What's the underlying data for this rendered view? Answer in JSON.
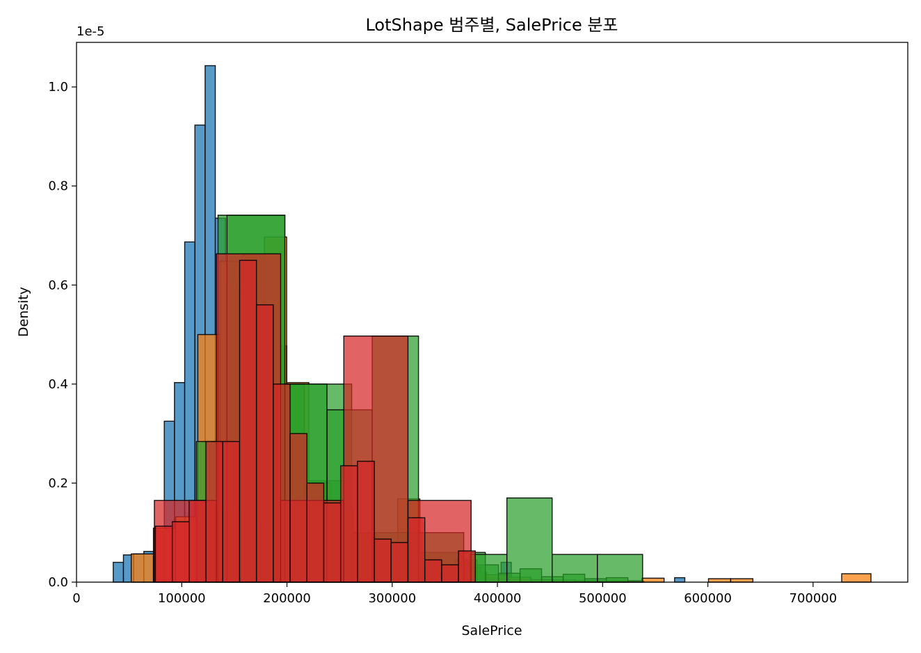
{
  "chart_data": {
    "type": "histogram",
    "title": "LotShape 범주별, SalePrice 분포",
    "xlabel": "SalePrice",
    "ylabel": "Density",
    "y_offset_label": "1e-5",
    "xlim": [
      0,
      790000
    ],
    "ylim": [
      0,
      1.09
    ],
    "x_ticks": [
      0,
      100000,
      200000,
      300000,
      400000,
      500000,
      600000,
      700000
    ],
    "y_ticks": [
      0.0,
      0.2,
      0.4,
      0.6,
      0.8,
      1.0
    ],
    "grid": false,
    "legend": "none",
    "series": [
      {
        "color": "#1f77b4",
        "bins": [
          [
            34900,
            44600,
            0.04
          ],
          [
            44600,
            54300,
            0.055
          ],
          [
            54300,
            64000,
            0.057
          ],
          [
            64000,
            73700,
            0.062
          ],
          [
            73700,
            83400,
            0.103
          ],
          [
            83400,
            93100,
            0.325
          ],
          [
            93100,
            102800,
            0.403
          ],
          [
            102800,
            112500,
            0.687
          ],
          [
            112500,
            122200,
            0.923
          ],
          [
            122200,
            131900,
            1.043
          ],
          [
            131900,
            141600,
            0.735
          ],
          [
            141600,
            151300,
            0.605
          ],
          [
            151300,
            161000,
            0.585
          ],
          [
            161000,
            170700,
            0.538
          ],
          [
            170700,
            180400,
            0.598
          ],
          [
            180400,
            190100,
            0.555
          ],
          [
            190100,
            199800,
            0.477
          ],
          [
            199800,
            209500,
            0.254
          ],
          [
            209500,
            219200,
            0.16
          ],
          [
            219200,
            228900,
            0.145
          ],
          [
            228900,
            238600,
            0.126
          ],
          [
            238600,
            248300,
            0.115
          ],
          [
            248300,
            258000,
            0.09
          ],
          [
            258000,
            267700,
            0.075
          ],
          [
            267700,
            277400,
            0.065
          ],
          [
            277400,
            287100,
            0.055
          ],
          [
            287100,
            296800,
            0.048
          ],
          [
            296800,
            306500,
            0.036
          ],
          [
            306500,
            316200,
            0.028
          ],
          [
            316200,
            325900,
            0.025
          ],
          [
            325900,
            335600,
            0.022
          ],
          [
            335600,
            345300,
            0.048
          ],
          [
            345300,
            355000,
            0.018
          ],
          [
            355000,
            364700,
            0.015
          ],
          [
            364700,
            374400,
            0.012
          ],
          [
            374400,
            384100,
            0.03
          ],
          [
            384100,
            393800,
            0.01
          ],
          [
            393800,
            403500,
            0.008
          ],
          [
            403500,
            413200,
            0.04
          ],
          [
            413200,
            422900,
            0.006
          ],
          [
            422900,
            432600,
            0.005
          ],
          [
            432600,
            442300,
            0.004
          ],
          [
            442300,
            452000,
            0.004
          ],
          [
            452000,
            461700,
            0.003
          ],
          [
            461700,
            471400,
            0.003
          ],
          [
            471400,
            481100,
            0.003
          ],
          [
            481100,
            490800,
            0.003
          ],
          [
            490800,
            500500,
            0.002
          ],
          [
            500500,
            510200,
            0.002
          ],
          [
            510200,
            519900,
            0.002
          ],
          [
            519900,
            529600,
            0.002
          ],
          [
            529600,
            539300,
            0.002
          ],
          [
            539300,
            549000,
            0.0
          ],
          [
            549000,
            558700,
            0.0
          ],
          [
            558700,
            568400,
            0.0
          ],
          [
            568400,
            578100,
            0.009
          ]
        ]
      },
      {
        "color": "#ff7f0e",
        "bins": [
          [
            52000,
            73100,
            0.057
          ],
          [
            73100,
            94200,
            0.109
          ],
          [
            94200,
            115300,
            0.132
          ],
          [
            115300,
            136400,
            0.5
          ],
          [
            136400,
            157500,
            0.648
          ],
          [
            157500,
            178600,
            0.66
          ],
          [
            178600,
            199700,
            0.697
          ],
          [
            199700,
            220800,
            0.403
          ],
          [
            220800,
            241900,
            0.2
          ],
          [
            241900,
            263000,
            0.15
          ],
          [
            263000,
            284100,
            0.1
          ],
          [
            284100,
            305200,
            0.07
          ],
          [
            305200,
            326300,
            0.168
          ],
          [
            326300,
            347400,
            0.035
          ],
          [
            347400,
            368500,
            0.03
          ],
          [
            368500,
            389600,
            0.02
          ],
          [
            389600,
            410700,
            0.015
          ],
          [
            410700,
            431800,
            0.01
          ],
          [
            431800,
            452900,
            0.005
          ],
          [
            452900,
            474000,
            0.004
          ],
          [
            474000,
            495100,
            0.003
          ],
          [
            495100,
            516200,
            0.003
          ],
          [
            516200,
            537300,
            0.003
          ],
          [
            537300,
            558400,
            0.008
          ],
          [
            558400,
            579500,
            0.0
          ],
          [
            579500,
            600600,
            0.0
          ],
          [
            600600,
            621700,
            0.007
          ],
          [
            621700,
            642800,
            0.007
          ],
          [
            642800,
            663900,
            0.0
          ],
          [
            663900,
            685000,
            0.0
          ],
          [
            685000,
            706100,
            0.0
          ],
          [
            706100,
            727200,
            0.0
          ],
          [
            727200,
            755000,
            0.017
          ]
        ]
      },
      {
        "color": "#2ca02c",
        "bins": [
          [
            114000,
            134500,
            0.284
          ],
          [
            134500,
            155000,
            0.15
          ],
          [
            155000,
            175500,
            0.12
          ],
          [
            175500,
            196000,
            0.0
          ],
          [
            196000,
            216500,
            0.4
          ],
          [
            216500,
            237000,
            0.205
          ],
          [
            237000,
            257500,
            0.205
          ],
          [
            257500,
            278000,
            0.1
          ],
          [
            278000,
            298500,
            0.08
          ],
          [
            298500,
            319000,
            0.05
          ],
          [
            319000,
            339500,
            0.035
          ],
          [
            339500,
            360000,
            0.015
          ],
          [
            360000,
            380500,
            0.045
          ],
          [
            380500,
            401000,
            0.035
          ],
          [
            401000,
            421500,
            0.018
          ],
          [
            421500,
            442000,
            0.027
          ],
          [
            442000,
            462500,
            0.011
          ],
          [
            462500,
            483000,
            0.016
          ],
          [
            483000,
            503500,
            0.007
          ],
          [
            503500,
            524000,
            0.009
          ],
          [
            134500,
            198000,
            0.741
          ],
          [
            198000,
            261500,
            0.4
          ],
          [
            261500,
            325000,
            0.1
          ],
          [
            325000,
            388500,
            0.06
          ]
        ]
      },
      {
        "color": "#2ca02c",
        "bins": [
          [
            143000,
            198000,
            0.741
          ],
          [
            238000,
            281000,
            0.348
          ],
          [
            198000,
            238000,
            0.4
          ],
          [
            281000,
            325000,
            0.497
          ],
          [
            374000,
            409000,
            0.056
          ],
          [
            409000,
            452000,
            0.17
          ],
          [
            452000,
            495000,
            0.056
          ],
          [
            495000,
            538000,
            0.056
          ],
          [
            325000,
            368000,
            0.1
          ],
          [
            368000,
            374000,
            0.0
          ]
        ]
      },
      {
        "color": "#d62728",
        "bins": [
          [
            74000,
            133000,
            0.165
          ],
          [
            133000,
            194000,
            0.663
          ],
          [
            194000,
            254000,
            0.165
          ],
          [
            254000,
            315000,
            0.497
          ],
          [
            315000,
            375000,
            0.165
          ],
          [
            75000,
            91000,
            0.113
          ],
          [
            91000,
            107000,
            0.122
          ],
          [
            107000,
            123000,
            0.165
          ],
          [
            123000,
            139000,
            0.284
          ],
          [
            139000,
            155000,
            0.284
          ],
          [
            155000,
            171000,
            0.65
          ],
          [
            171000,
            187000,
            0.56
          ],
          [
            187000,
            203000,
            0.4
          ],
          [
            203000,
            219000,
            0.3
          ],
          [
            219000,
            235000,
            0.2
          ],
          [
            235000,
            251000,
            0.16
          ],
          [
            251000,
            267000,
            0.235
          ],
          [
            267000,
            283000,
            0.244
          ],
          [
            283000,
            299000,
            0.087
          ],
          [
            299000,
            315000,
            0.08
          ],
          [
            315000,
            331000,
            0.13
          ],
          [
            331000,
            347000,
            0.045
          ],
          [
            347000,
            363000,
            0.035
          ],
          [
            363000,
            379000,
            0.063
          ]
        ]
      }
    ]
  }
}
